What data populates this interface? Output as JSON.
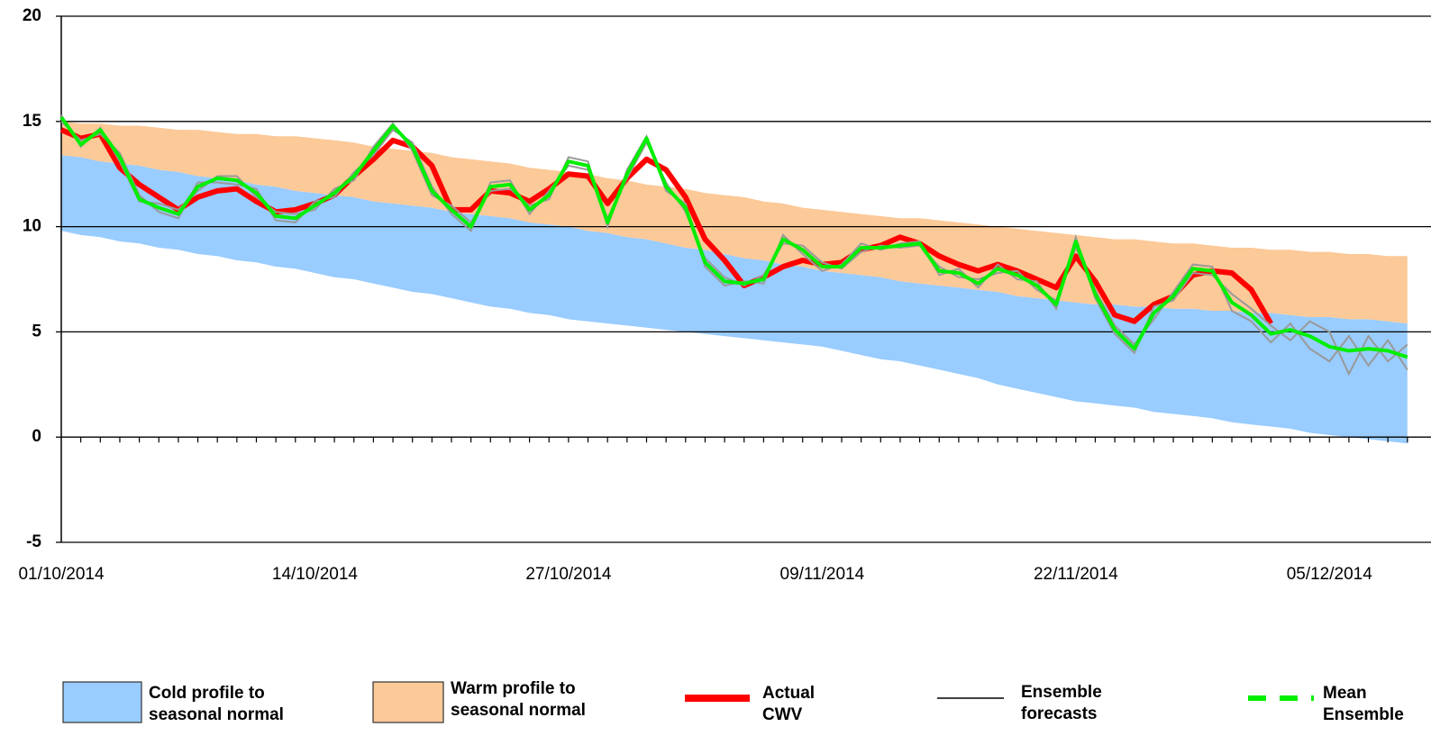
{
  "chart_data": {
    "type": "line",
    "categories": [
      "01/10/2014",
      null,
      null,
      null,
      null,
      null,
      null,
      null,
      null,
      null,
      null,
      null,
      null,
      "14/10/2014",
      null,
      null,
      null,
      null,
      null,
      null,
      null,
      null,
      null,
      null,
      null,
      null,
      "27/10/2014",
      null,
      null,
      null,
      null,
      null,
      null,
      null,
      null,
      null,
      null,
      null,
      null,
      "09/11/2014",
      null,
      null,
      null,
      null,
      null,
      null,
      null,
      null,
      null,
      null,
      null,
      null,
      "22/11/2014",
      null,
      null,
      null,
      null,
      null,
      null,
      null,
      null,
      null,
      null,
      null,
      null,
      "05/12/2014",
      null,
      null,
      null,
      null
    ],
    "ylim": [
      -5,
      20
    ],
    "yticks": [
      -5,
      0,
      5,
      10,
      15,
      20
    ],
    "grid": true,
    "legend": "bottom",
    "series": [
      {
        "name": "Cold profile to seasonal normal",
        "style": "band",
        "color": "#99ccff",
        "low": [
          9.8,
          9.6,
          9.5,
          9.3,
          9.2,
          9.0,
          8.9,
          8.7,
          8.6,
          8.4,
          8.3,
          8.1,
          8.0,
          7.8,
          7.6,
          7.5,
          7.3,
          7.1,
          6.9,
          6.8,
          6.6,
          6.4,
          6.2,
          6.1,
          5.9,
          5.8,
          5.6,
          5.5,
          5.4,
          5.3,
          5.2,
          5.1,
          5.0,
          4.9,
          4.8,
          4.7,
          4.6,
          4.5,
          4.4,
          4.3,
          4.1,
          3.9,
          3.7,
          3.6,
          3.4,
          3.2,
          3.0,
          2.8,
          2.5,
          2.3,
          2.1,
          1.9,
          1.7,
          1.6,
          1.5,
          1.4,
          1.2,
          1.1,
          1.0,
          0.9,
          0.7,
          0.6,
          0.5,
          0.4,
          0.2,
          0.1,
          0.0,
          -0.1,
          -0.2,
          -0.3
        ],
        "high": [
          13.4,
          13.3,
          13.1,
          13.0,
          12.9,
          12.7,
          12.6,
          12.4,
          12.3,
          12.2,
          12.0,
          11.9,
          11.7,
          11.6,
          11.5,
          11.4,
          11.2,
          11.1,
          11.0,
          10.9,
          10.7,
          10.6,
          10.5,
          10.4,
          10.2,
          10.1,
          10.0,
          9.8,
          9.7,
          9.5,
          9.4,
          9.2,
          9.0,
          8.9,
          8.7,
          8.5,
          8.4,
          8.2,
          8.1,
          7.9,
          7.8,
          7.7,
          7.6,
          7.4,
          7.3,
          7.2,
          7.1,
          7.0,
          6.9,
          6.7,
          6.6,
          6.5,
          6.4,
          6.3,
          6.3,
          6.2,
          6.2,
          6.1,
          6.1,
          6.0,
          6.0,
          5.9,
          5.9,
          5.8,
          5.7,
          5.7,
          5.6,
          5.6,
          5.5,
          5.4
        ]
      },
      {
        "name": "Warm profile to seasonal normal",
        "style": "band",
        "color": "#fcc998",
        "low": [
          13.4,
          13.3,
          13.1,
          13.0,
          12.9,
          12.7,
          12.6,
          12.4,
          12.3,
          12.2,
          12.0,
          11.9,
          11.7,
          11.6,
          11.5,
          11.4,
          11.2,
          11.1,
          11.0,
          10.9,
          10.7,
          10.6,
          10.5,
          10.4,
          10.2,
          10.1,
          10.0,
          9.8,
          9.7,
          9.5,
          9.4,
          9.2,
          9.0,
          8.9,
          8.7,
          8.5,
          8.4,
          8.2,
          8.1,
          7.9,
          7.8,
          7.7,
          7.6,
          7.4,
          7.3,
          7.2,
          7.1,
          7.0,
          6.9,
          6.7,
          6.6,
          6.5,
          6.4,
          6.3,
          6.3,
          6.2,
          6.2,
          6.1,
          6.1,
          6.0,
          6.0,
          5.9,
          5.9,
          5.8,
          5.7,
          5.7,
          5.6,
          5.6,
          5.5,
          5.4
        ],
        "high": [
          15.0,
          14.9,
          14.9,
          14.8,
          14.8,
          14.7,
          14.6,
          14.6,
          14.5,
          14.4,
          14.4,
          14.3,
          14.3,
          14.2,
          14.1,
          14.0,
          13.8,
          13.7,
          13.6,
          13.5,
          13.3,
          13.2,
          13.1,
          13.0,
          12.8,
          12.7,
          12.6,
          12.5,
          12.3,
          12.2,
          12.0,
          11.9,
          11.8,
          11.6,
          11.5,
          11.4,
          11.2,
          11.1,
          10.9,
          10.8,
          10.7,
          10.6,
          10.5,
          10.4,
          10.4,
          10.3,
          10.2,
          10.1,
          10.0,
          9.9,
          9.8,
          9.7,
          9.6,
          9.5,
          9.4,
          9.4,
          9.3,
          9.2,
          9.2,
          9.1,
          9.0,
          9.0,
          8.9,
          8.9,
          8.8,
          8.8,
          8.7,
          8.7,
          8.6,
          8.6
        ]
      },
      {
        "name": "Actual CWV",
        "style": "line",
        "color": "#ff0000",
        "values": [
          14.6,
          14.2,
          14.4,
          12.8,
          12.0,
          11.4,
          10.8,
          11.4,
          11.7,
          11.8,
          11.2,
          10.7,
          10.8,
          11.1,
          11.5,
          12.4,
          13.2,
          14.1,
          13.8,
          12.9,
          10.8,
          10.8,
          11.7,
          11.6,
          11.2,
          11.8,
          12.5,
          12.4,
          11.1,
          12.3,
          13.2,
          12.7,
          11.4,
          9.4,
          8.4,
          7.2,
          7.6,
          8.1,
          8.4,
          8.2,
          8.3,
          8.9,
          9.1,
          9.5,
          9.2,
          8.6,
          8.2,
          7.9,
          8.2,
          7.9,
          7.5,
          7.1,
          8.6,
          7.4,
          5.8,
          5.5,
          6.3,
          6.7,
          7.7,
          7.9,
          7.8,
          7.0,
          5.4,
          null,
          null,
          null,
          null,
          null,
          null,
          null
        ]
      },
      {
        "name": "Ensemble forecasts",
        "style": "ensemble",
        "color": "#999999",
        "legend_color": "#000000",
        "members": [
          [
            15.0,
            14.1,
            14.4,
            13.5,
            11.5,
            10.7,
            10.4,
            12.1,
            12.1,
            12.0,
            11.8,
            10.3,
            10.2,
            11.2,
            11.4,
            12.6,
            13.4,
            14.6,
            14.0,
            11.9,
            10.6,
            9.8,
            12.1,
            12.2,
            10.6,
            11.7,
            12.9,
            12.7,
            10.4,
            12.3,
            14.0,
            12.1,
            10.7,
            8.5,
            7.6,
            7.2,
            7.7,
            9.2,
            9.1,
            8.3,
            8.0,
            8.8,
            9.1,
            9.0,
            9.1,
            8.1,
            7.6,
            7.5,
            7.8,
            7.9,
            7.0,
            6.5,
            9.0,
            7.0,
            5.3,
            4.4,
            5.6,
            6.9,
            8.2,
            8.1,
            6.0,
            5.5,
            4.5,
            5.4,
            4.2,
            3.6,
            4.8,
            3.4,
            4.6,
            3.2
          ],
          [
            15.3,
            13.8,
            14.7,
            13.1,
            11.2,
            11.1,
            10.8,
            11.7,
            12.4,
            12.4,
            11.4,
            10.7,
            10.6,
            10.8,
            11.8,
            12.2,
            13.8,
            14.9,
            13.6,
            11.5,
            11.0,
            10.2,
            11.7,
            11.8,
            11.0,
            11.3,
            13.3,
            13.1,
            10.0,
            12.7,
            14.3,
            11.7,
            11.1,
            8.1,
            7.2,
            7.4,
            7.3,
            9.6,
            8.7,
            7.9,
            8.2,
            9.2,
            8.9,
            9.2,
            9.3,
            7.7,
            8.0,
            7.1,
            8.2,
            7.5,
            7.4,
            6.1,
            9.5,
            6.6,
            4.9,
            4.0,
            6.2,
            6.5,
            7.8,
            7.7,
            6.8,
            6.1,
            5.3,
            4.6,
            5.5,
            5.0,
            3.0,
            4.8,
            3.6,
            4.4
          ]
        ]
      },
      {
        "name": "Mean Ensemble",
        "style": "mean",
        "color": "#00ee00",
        "values": [
          15.2,
          13.9,
          14.6,
          13.3,
          11.3,
          10.9,
          10.6,
          11.9,
          12.3,
          12.2,
          11.6,
          10.5,
          10.4,
          11.0,
          11.6,
          12.4,
          13.6,
          14.8,
          13.8,
          11.7,
          10.8,
          10.0,
          11.9,
          12.0,
          10.8,
          11.5,
          13.1,
          12.9,
          10.2,
          12.5,
          14.2,
          11.9,
          10.9,
          8.3,
          7.4,
          7.3,
          7.5,
          9.4,
          8.9,
          8.1,
          8.1,
          9.0,
          9.0,
          9.1,
          9.2,
          7.9,
          7.8,
          7.3,
          8.0,
          7.7,
          7.2,
          6.3,
          9.3,
          6.8,
          5.1,
          4.2,
          5.9,
          6.7,
          8.0,
          7.9,
          6.4,
          5.8,
          4.9,
          5.1,
          4.8,
          4.3,
          4.1,
          4.2,
          4.1,
          3.8
        ]
      }
    ]
  }
}
